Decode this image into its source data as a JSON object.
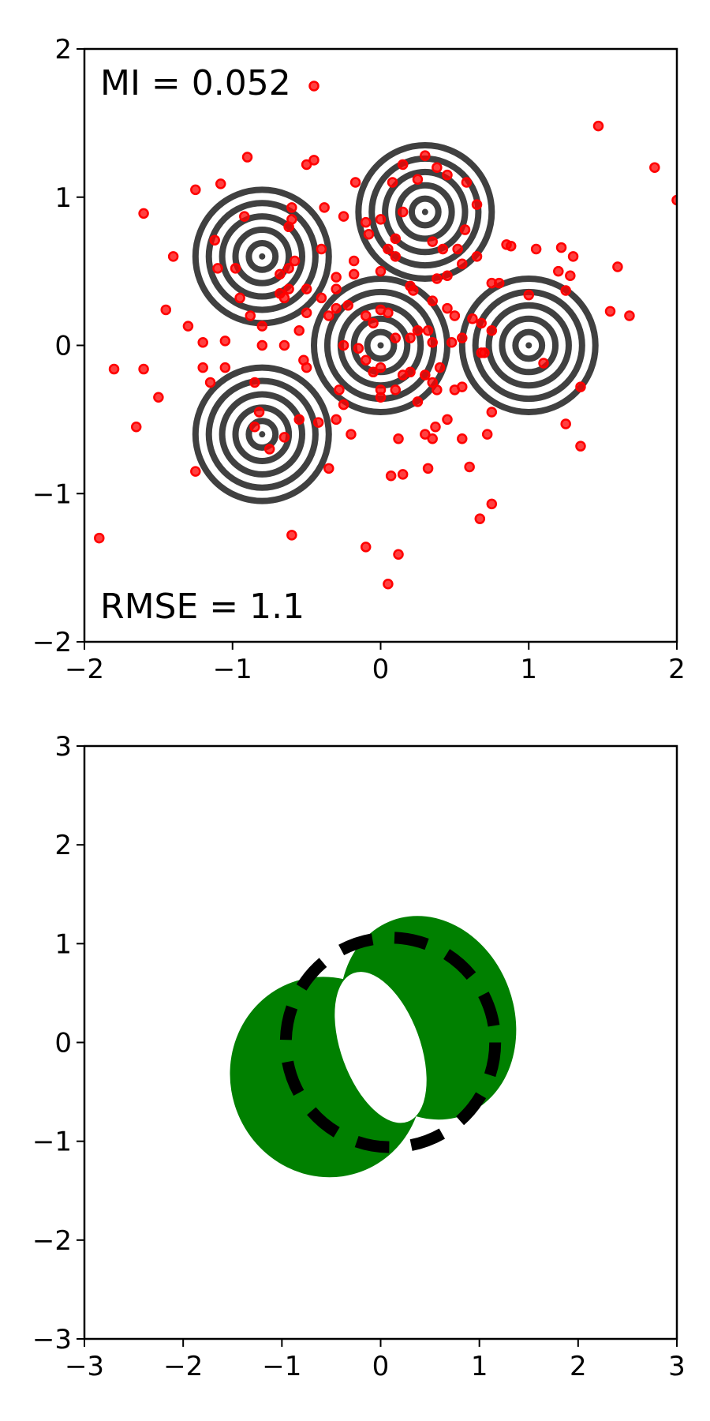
{
  "chart_data": [
    {
      "type": "scatter",
      "title": "",
      "xlabel": "",
      "ylabel": "",
      "xlim": [
        -2,
        2
      ],
      "ylim": [
        -2,
        2
      ],
      "xticks": [
        -2,
        -1,
        0,
        1,
        2
      ],
      "yticks": [
        -2,
        -1,
        0,
        1,
        2
      ],
      "xtick_labels": [
        "−2",
        "−1",
        "0",
        "1",
        "2"
      ],
      "ytick_labels": [
        "−2",
        "−1",
        "0",
        "1",
        "2"
      ],
      "grid": false,
      "annotations": [
        {
          "text": "MI = 0.052",
          "position": "top-left"
        },
        {
          "text": "RMSE = 1.1",
          "position": "bottom-left"
        }
      ],
      "contour_color": "#404040",
      "point_color": "#ff0000",
      "contour_centers": [
        {
          "x": -0.8,
          "y": 0.6
        },
        {
          "x": 0.3,
          "y": 0.9
        },
        {
          "x": 0.0,
          "y": 0.0
        },
        {
          "x": 1.0,
          "y": 0.0
        },
        {
          "x": -0.8,
          "y": -0.6
        }
      ],
      "contour_radii": [
        0.09,
        0.18,
        0.27,
        0.36,
        0.45
      ],
      "points": [
        [
          -0.45,
          1.75
        ],
        [
          1.47,
          1.48
        ],
        [
          1.85,
          1.2
        ],
        [
          2.0,
          0.98
        ],
        [
          -0.9,
          1.27
        ],
        [
          -0.5,
          1.22
        ],
        [
          -0.45,
          1.25
        ],
        [
          -1.25,
          1.05
        ],
        [
          -1.08,
          1.09
        ],
        [
          -1.6,
          0.89
        ],
        [
          -0.6,
          0.93
        ],
        [
          -0.38,
          0.93
        ],
        [
          -0.25,
          0.87
        ],
        [
          -0.6,
          0.85
        ],
        [
          -0.62,
          0.8
        ],
        [
          -0.92,
          0.87
        ],
        [
          -1.12,
          0.71
        ],
        [
          -1.4,
          0.6
        ],
        [
          -0.58,
          0.57
        ],
        [
          -0.62,
          0.52
        ],
        [
          -0.68,
          0.48
        ],
        [
          -0.4,
          0.65
        ],
        [
          -0.18,
          0.57
        ],
        [
          -0.18,
          0.48
        ],
        [
          -0.3,
          0.46
        ],
        [
          -1.1,
          0.52
        ],
        [
          -0.98,
          0.52
        ],
        [
          -0.5,
          0.38
        ],
        [
          -0.62,
          0.38
        ],
        [
          -0.68,
          0.35
        ],
        [
          -0.65,
          0.32
        ],
        [
          -0.95,
          0.32
        ],
        [
          -0.88,
          0.2
        ],
        [
          -0.8,
          0.13
        ],
        [
          -0.4,
          0.32
        ],
        [
          -0.3,
          0.25
        ],
        [
          -0.22,
          0.27
        ],
        [
          -0.35,
          0.2
        ],
        [
          -0.5,
          0.22
        ],
        [
          -1.45,
          0.24
        ],
        [
          -1.3,
          0.13
        ],
        [
          -1.2,
          0.02
        ],
        [
          -1.05,
          0.03
        ],
        [
          -0.55,
          0.1
        ],
        [
          -0.8,
          0.0
        ],
        [
          -0.65,
          0.0
        ],
        [
          -0.25,
          0.0
        ],
        [
          -0.15,
          -0.02
        ],
        [
          -0.1,
          0.2
        ],
        [
          0.0,
          0.24
        ],
        [
          0.05,
          0.22
        ],
        [
          -0.05,
          0.15
        ],
        [
          0.1,
          0.05
        ],
        [
          0.2,
          0.05
        ],
        [
          0.25,
          0.1
        ],
        [
          0.32,
          0.1
        ],
        [
          0.35,
          0.3
        ],
        [
          0.45,
          0.25
        ],
        [
          0.5,
          0.2
        ],
        [
          0.62,
          0.18
        ],
        [
          0.68,
          0.15
        ],
        [
          0.75,
          0.1
        ],
        [
          0.55,
          0.05
        ],
        [
          0.48,
          0.02
        ],
        [
          0.68,
          -0.05
        ],
        [
          0.7,
          -0.05
        ],
        [
          1.1,
          -0.12
        ],
        [
          1.35,
          -0.28
        ],
        [
          1.25,
          -0.53
        ],
        [
          1.35,
          -0.68
        ],
        [
          0.75,
          -0.45
        ],
        [
          0.72,
          -0.6
        ],
        [
          0.55,
          -0.63
        ],
        [
          0.45,
          -0.5
        ],
        [
          0.37,
          -0.55
        ],
        [
          0.3,
          -0.6
        ],
        [
          0.35,
          -0.63
        ],
        [
          0.32,
          -0.83
        ],
        [
          0.6,
          -0.82
        ],
        [
          0.75,
          -1.07
        ],
        [
          0.67,
          -1.17
        ],
        [
          -1.2,
          -0.15
        ],
        [
          -1.05,
          -0.15
        ],
        [
          -1.15,
          -0.25
        ],
        [
          -1.25,
          -0.85
        ],
        [
          -0.85,
          -0.25
        ],
        [
          -0.82,
          -0.45
        ],
        [
          -0.85,
          -0.55
        ],
        [
          -0.55,
          -0.5
        ],
        [
          -0.42,
          -0.52
        ],
        [
          -0.52,
          -0.1
        ],
        [
          -0.5,
          -0.15
        ],
        [
          -0.28,
          -0.3
        ],
        [
          -0.25,
          -0.4
        ],
        [
          -0.3,
          -0.5
        ],
        [
          -0.1,
          -0.1
        ],
        [
          -0.05,
          -0.18
        ],
        [
          0.0,
          -0.15
        ],
        [
          0.0,
          -0.35
        ],
        [
          0.0,
          -0.3
        ],
        [
          0.1,
          -0.3
        ],
        [
          0.15,
          -0.2
        ],
        [
          0.2,
          -0.18
        ],
        [
          0.25,
          -0.38
        ],
        [
          0.3,
          -0.2
        ],
        [
          0.35,
          -0.25
        ],
        [
          0.38,
          -0.3
        ],
        [
          0.5,
          -0.3
        ],
        [
          0.55,
          -0.28
        ],
        [
          -0.65,
          -0.62
        ],
        [
          -0.75,
          -0.7
        ],
        [
          -0.35,
          -0.83
        ],
        [
          -0.2,
          -0.6
        ],
        [
          -0.6,
          -1.28
        ],
        [
          -0.1,
          -1.36
        ],
        [
          0.12,
          -1.41
        ],
        [
          0.05,
          -1.61
        ],
        [
          0.07,
          -0.88
        ],
        [
          0.15,
          -0.87
        ],
        [
          0.12,
          -0.63
        ],
        [
          -1.65,
          -0.55
        ],
        [
          -1.5,
          -0.35
        ],
        [
          -1.6,
          -0.16
        ],
        [
          -1.8,
          -0.16
        ],
        [
          -1.9,
          -1.3
        ],
        [
          0.55,
          0.55
        ],
        [
          0.45,
          0.47
        ],
        [
          0.38,
          0.45
        ],
        [
          0.2,
          0.4
        ],
        [
          0.22,
          0.37
        ],
        [
          0.1,
          0.6
        ],
        [
          0.0,
          0.5
        ],
        [
          0.05,
          0.65
        ],
        [
          0.1,
          0.72
        ],
        [
          -0.08,
          0.75
        ],
        [
          -0.1,
          0.83
        ],
        [
          0.0,
          0.85
        ],
        [
          0.15,
          0.9
        ],
        [
          0.08,
          1.1
        ],
        [
          0.15,
          1.22
        ],
        [
          0.25,
          1.12
        ],
        [
          0.3,
          1.28
        ],
        [
          0.38,
          1.2
        ],
        [
          0.45,
          1.15
        ],
        [
          0.58,
          1.1
        ],
        [
          0.65,
          0.95
        ],
        [
          0.57,
          0.78
        ],
        [
          0.52,
          0.65
        ],
        [
          0.42,
          0.65
        ],
        [
          0.35,
          0.7
        ],
        [
          -0.17,
          1.1
        ],
        [
          0.75,
          0.42
        ],
        [
          0.8,
          0.42
        ],
        [
          0.85,
          0.68
        ],
        [
          0.88,
          0.67
        ],
        [
          1.05,
          0.65
        ],
        [
          1.22,
          0.66
        ],
        [
          1.3,
          0.6
        ],
        [
          1.2,
          0.5
        ],
        [
          1.28,
          0.47
        ],
        [
          1.25,
          0.37
        ],
        [
          1.6,
          0.53
        ],
        [
          1.55,
          0.23
        ],
        [
          1.68,
          0.2
        ],
        [
          1.0,
          0.34
        ],
        [
          0.65,
          0.6
        ],
        [
          -0.3,
          0.38
        ],
        [
          0.35,
          0.02
        ],
        [
          0.4,
          -0.15
        ]
      ]
    },
    {
      "type": "area",
      "title": "",
      "xlabel": "",
      "ylabel": "",
      "xlim": [
        -3,
        3
      ],
      "ylim": [
        -3,
        3
      ],
      "xticks": [
        -3,
        -2,
        -1,
        0,
        1,
        2,
        3
      ],
      "yticks": [
        -3,
        -2,
        -1,
        0,
        1,
        2,
        3
      ],
      "xtick_labels": [
        "−3",
        "−2",
        "−1",
        "0",
        "1",
        "2",
        "3"
      ],
      "ytick_labels": [
        "−3",
        "−2",
        "−1",
        "0",
        "1",
        "2",
        "3"
      ],
      "grid": false,
      "fill_color": "#008000",
      "dash_color": "#000000",
      "filled_rings": [
        {
          "cx": -0.55,
          "cy": -0.35,
          "rx": 0.97,
          "ry": 1.02,
          "rotation_deg": -20
        },
        {
          "cx": 0.48,
          "cy": 0.25,
          "rx": 0.87,
          "ry": 1.05,
          "rotation_deg": -20
        }
      ],
      "hole": {
        "cx": 0.0,
        "cy": -0.05,
        "rx": 0.4,
        "ry": 0.8,
        "rotation_deg": -20
      },
      "dashed_circle": {
        "cx": 0.1,
        "cy": 0.0,
        "r": 1.06
      }
    }
  ]
}
